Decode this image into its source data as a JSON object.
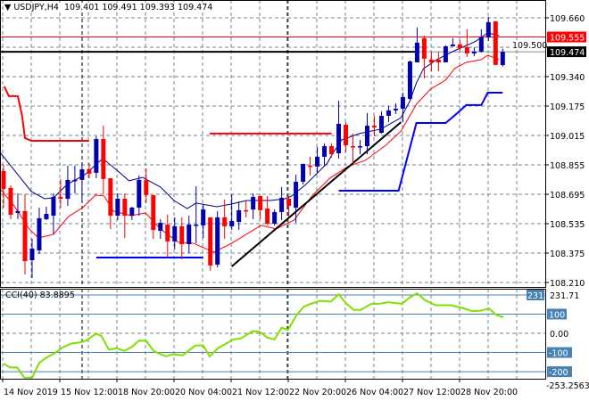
{
  "header": {
    "symbol": "USDJPY,H4",
    "open": "109.401",
    "high": "109.491",
    "low": "109.393",
    "close": "109.474"
  },
  "colors": {
    "bull": "#0000b0",
    "bear": "#ff0000",
    "ma_upper": "#000080",
    "ma_lower": "#ff0000",
    "cci": "#80e000",
    "level": "#4682b4",
    "grid": "#708090"
  },
  "price_axis": {
    "labels": [
      "109.660",
      "109.500",
      "109.340",
      "109.175",
      "109.015",
      "108.855",
      "108.695",
      "108.535",
      "108.375",
      "108.210"
    ],
    "bid_label": "109.555",
    "last_label": "109.474",
    "bid": 109.555,
    "last": 109.474
  },
  "cci_panel": {
    "title": "CCI(40) 83.8895",
    "max_label": "231.71",
    "min_label": "-253.2563",
    "levels": [
      "100",
      "0.00",
      "-100",
      "-200"
    ],
    "level_231": "231"
  },
  "time_axis": [
    "14 Nov 2019",
    "15 Nov 12:00",
    "18 Nov 20:00",
    "20 Nov 04:00",
    "21 Nov 12:00",
    "22 Nov 20:00",
    "26 Nov 04:00",
    "27 Nov 12:00",
    "28 Nov 20:00"
  ],
  "chart_data": {
    "type": "candlestick",
    "symbol": "USDJPY",
    "timeframe": "H4",
    "ylim": [
      108.21,
      109.66
    ],
    "ohlc": [
      [
        108.82,
        108.855,
        108.62,
        108.723
      ],
      [
        108.728,
        108.742,
        108.557,
        108.581
      ],
      [
        108.591,
        108.698,
        108.557,
        108.601
      ],
      [
        108.601,
        108.694,
        108.254,
        108.327
      ],
      [
        108.332,
        108.449,
        108.235,
        108.396
      ],
      [
        108.386,
        108.62,
        108.366,
        108.562
      ],
      [
        108.557,
        108.625,
        108.552,
        108.586
      ],
      [
        108.576,
        108.698,
        108.474,
        108.679
      ],
      [
        108.679,
        108.777,
        108.62,
        108.669
      ],
      [
        108.669,
        108.85,
        108.63,
        108.772
      ],
      [
        108.767,
        108.85,
        108.698,
        108.772
      ],
      [
        108.772,
        108.864,
        108.65,
        108.83
      ],
      [
        108.83,
        108.864,
        108.781,
        108.806
      ],
      [
        108.811,
        109.011,
        108.781,
        108.996
      ],
      [
        108.996,
        109.069,
        108.694,
        108.777
      ],
      [
        108.781,
        108.781,
        108.503,
        108.576
      ],
      [
        108.576,
        108.698,
        108.552,
        108.669
      ],
      [
        108.669,
        108.698,
        108.454,
        108.576
      ],
      [
        108.576,
        108.625,
        108.552,
        108.62
      ],
      [
        108.62,
        108.796,
        108.576,
        108.772
      ],
      [
        108.772,
        108.835,
        108.645,
        108.689
      ],
      [
        108.689,
        108.689,
        108.449,
        108.498
      ],
      [
        108.493,
        108.557,
        108.449,
        108.537
      ],
      [
        108.527,
        108.581,
        108.347,
        108.435
      ],
      [
        108.435,
        108.567,
        108.391,
        108.518
      ],
      [
        108.518,
        108.567,
        108.337,
        108.42
      ],
      [
        108.42,
        108.576,
        108.371,
        108.527
      ],
      [
        108.523,
        108.737,
        108.425,
        108.527
      ],
      [
        108.523,
        108.64,
        108.454,
        108.61
      ],
      [
        108.567,
        108.567,
        108.274,
        108.303
      ],
      [
        108.308,
        108.601,
        108.293,
        108.567
      ],
      [
        108.567,
        108.664,
        108.449,
        108.518
      ],
      [
        108.518,
        108.694,
        108.498,
        108.547
      ],
      [
        108.542,
        108.654,
        108.498,
        108.606
      ],
      [
        108.606,
        108.659,
        108.567,
        108.601
      ],
      [
        108.61,
        108.698,
        108.557,
        108.679
      ],
      [
        108.684,
        108.684,
        108.557,
        108.606
      ],
      [
        108.615,
        108.684,
        108.523,
        108.532
      ],
      [
        108.532,
        108.61,
        108.523,
        108.596
      ],
      [
        108.596,
        108.733,
        108.552,
        108.674
      ],
      [
        108.669,
        108.684,
        108.571,
        108.63
      ],
      [
        108.62,
        108.801,
        108.537,
        108.762
      ],
      [
        108.762,
        108.86,
        108.747,
        108.86
      ],
      [
        108.85,
        108.899,
        108.796,
        108.845
      ],
      [
        108.845,
        108.952,
        108.806,
        108.899
      ],
      [
        108.899,
        108.972,
        108.845,
        108.957
      ],
      [
        108.957,
        108.972,
        108.894,
        108.913
      ],
      [
        108.918,
        109.206,
        108.889,
        109.079
      ],
      [
        109.074,
        109.089,
        108.923,
        108.962
      ],
      [
        108.957,
        109.026,
        108.864,
        108.952
      ],
      [
        108.952,
        108.991,
        108.913,
        108.957
      ],
      [
        108.957,
        109.138,
        108.913,
        109.069
      ],
      [
        109.069,
        109.123,
        109.011,
        109.06
      ],
      [
        109.03,
        109.148,
        109.026,
        109.123
      ],
      [
        109.123,
        109.177,
        109.089,
        109.153
      ],
      [
        109.153,
        109.192,
        109.133,
        109.162
      ],
      [
        109.162,
        109.25,
        109.089,
        109.226
      ],
      [
        109.216,
        109.426,
        109.211,
        109.421
      ],
      [
        109.416,
        109.607,
        109.416,
        109.524
      ],
      [
        109.548,
        109.563,
        109.328,
        109.436
      ],
      [
        109.431,
        109.475,
        109.367,
        109.416
      ],
      [
        109.431,
        109.475,
        109.367,
        109.416
      ],
      [
        109.416,
        109.509,
        109.416,
        109.504
      ],
      [
        109.504,
        109.548,
        109.504,
        109.514
      ],
      [
        109.514,
        109.538,
        109.48,
        109.494
      ],
      [
        109.499,
        109.597,
        109.445,
        109.465
      ],
      [
        109.465,
        109.499,
        109.45,
        109.475
      ],
      [
        109.475,
        109.597,
        109.47,
        109.553
      ],
      [
        109.553,
        109.665,
        109.533,
        109.636
      ],
      [
        109.641,
        109.641,
        109.402,
        109.402
      ],
      [
        109.401,
        109.491,
        109.393,
        109.474
      ]
    ],
    "ma_upper": [
      [
        -0.5,
        108.923
      ],
      [
        3.9,
        108.708
      ],
      [
        5.75,
        108.669
      ],
      [
        7,
        108.674
      ],
      [
        8.9,
        108.747
      ],
      [
        11.4,
        108.801
      ],
      [
        13.9,
        108.889
      ],
      [
        15.75,
        108.83
      ],
      [
        17.6,
        108.767
      ],
      [
        19.5,
        108.786
      ],
      [
        22,
        108.733
      ],
      [
        23.9,
        108.659
      ],
      [
        25.75,
        108.615
      ],
      [
        27,
        108.645
      ],
      [
        29.9,
        108.625
      ],
      [
        32,
        108.64
      ],
      [
        34.1,
        108.659
      ],
      [
        37.4,
        108.659
      ],
      [
        39.5,
        108.669
      ],
      [
        40.4,
        108.684
      ],
      [
        42.4,
        108.747
      ],
      [
        45.4,
        108.864
      ],
      [
        46.1,
        108.913
      ],
      [
        47.4,
        108.991
      ],
      [
        49.9,
        109.026
      ],
      [
        51.6,
        109.04
      ],
      [
        52.9,
        109.05
      ],
      [
        55.75,
        109.113
      ],
      [
        57,
        109.206
      ],
      [
        57.9,
        109.304
      ],
      [
        58.9,
        109.382
      ],
      [
        60.75,
        109.431
      ],
      [
        63.25,
        109.48
      ],
      [
        66.1,
        109.529
      ],
      [
        67.9,
        109.577
      ],
      [
        69.5,
        109.563
      ]
    ],
    "ma_lower": [
      [
        -0.5,
        108.723
      ],
      [
        1.4,
        108.635
      ],
      [
        3.6,
        108.503
      ],
      [
        4.9,
        108.454
      ],
      [
        7,
        108.474
      ],
      [
        9.1,
        108.571
      ],
      [
        11.1,
        108.62
      ],
      [
        12.9,
        108.689
      ],
      [
        14.1,
        108.684
      ],
      [
        15.4,
        108.601
      ],
      [
        17.9,
        108.576
      ],
      [
        19.9,
        108.591
      ],
      [
        22,
        108.503
      ],
      [
        24.5,
        108.43
      ],
      [
        26.6,
        108.425
      ],
      [
        29.5,
        108.376
      ],
      [
        32,
        108.425
      ],
      [
        36.1,
        108.523
      ],
      [
        38.25,
        108.503
      ],
      [
        39.9,
        108.537
      ],
      [
        40.75,
        108.552
      ],
      [
        43.25,
        108.684
      ],
      [
        45.75,
        108.781
      ],
      [
        48.25,
        108.845
      ],
      [
        50.75,
        108.879
      ],
      [
        53.6,
        108.962
      ],
      [
        55.75,
        109.04
      ],
      [
        57.9,
        109.187
      ],
      [
        59.9,
        109.27
      ],
      [
        62,
        109.319
      ],
      [
        63.25,
        109.382
      ],
      [
        64.9,
        109.416
      ],
      [
        67,
        109.431
      ],
      [
        67.9,
        109.455
      ],
      [
        69.5,
        109.431
      ]
    ],
    "resistance_steps": [
      [
        [
          0.1,
          109.284
        ],
        [
          0.75,
          109.231
        ],
        [
          2,
          109.231
        ],
        [
          2.6,
          109.123
        ],
        [
          3,
          109.001
        ],
        [
          3.9,
          108.986
        ],
        [
          12,
          108.986
        ]
      ],
      [
        [
          28.9,
          109.026
        ],
        [
          46,
          109.026
        ]
      ]
    ],
    "support_steps": [
      [
        [
          13,
          108.347
        ],
        [
          28,
          108.347
        ]
      ],
      [
        [
          47,
          108.713
        ],
        [
          55.4,
          108.713
        ],
        [
          57.9,
          109.084
        ],
        [
          62,
          109.084
        ],
        [
          62.9,
          109.113
        ],
        [
          64.9,
          109.182
        ],
        [
          67,
          109.182
        ],
        [
          67.9,
          109.25
        ],
        [
          70,
          109.25
        ]
      ]
    ],
    "trendline": [
      [
        32,
        108.298
      ],
      [
        55.75,
        109.089
      ]
    ],
    "hline": [
      [
        -0.5,
        109.474
      ],
      [
        57.9,
        109.474
      ]
    ],
    "cci": [
      [
        0,
        -158
      ],
      [
        0.9,
        -178
      ],
      [
        1.9,
        -178
      ],
      [
        2.9,
        -231
      ],
      [
        4,
        -231
      ],
      [
        5,
        -154
      ],
      [
        6.1,
        -125
      ],
      [
        7.1,
        -105
      ],
      [
        8.25,
        -74
      ],
      [
        9.5,
        -54
      ],
      [
        10.6,
        -48
      ],
      [
        11.6,
        -38
      ],
      [
        13,
        -2
      ],
      [
        13.75,
        -15
      ],
      [
        14.75,
        -85
      ],
      [
        15.9,
        -78
      ],
      [
        16.9,
        -92
      ],
      [
        18,
        -71
      ],
      [
        19,
        -38
      ],
      [
        20,
        -40
      ],
      [
        21.1,
        -94
      ],
      [
        22.75,
        -120
      ],
      [
        23.75,
        -109
      ],
      [
        25.1,
        -115
      ],
      [
        26.9,
        -63
      ],
      [
        28,
        -63
      ],
      [
        28.9,
        -120
      ],
      [
        30.1,
        -77
      ],
      [
        32.25,
        -32
      ],
      [
        33.25,
        -28
      ],
      [
        34.9,
        11
      ],
      [
        35.9,
        8
      ],
      [
        37,
        -23
      ],
      [
        38,
        -32
      ],
      [
        39,
        29
      ],
      [
        39.9,
        18
      ],
      [
        41.1,
        95
      ],
      [
        42.1,
        138
      ],
      [
        43,
        152
      ],
      [
        44.4,
        169
      ],
      [
        45.9,
        165
      ],
      [
        47,
        203
      ],
      [
        48,
        157
      ],
      [
        49.1,
        122
      ],
      [
        50.1,
        122
      ],
      [
        51.5,
        152
      ],
      [
        52.75,
        154
      ],
      [
        53.9,
        162
      ],
      [
        54.9,
        157
      ],
      [
        55.9,
        154
      ],
      [
        57,
        188
      ],
      [
        58,
        208
      ],
      [
        59.1,
        172
      ],
      [
        60.6,
        146
      ],
      [
        62.75,
        146
      ],
      [
        64.4,
        131
      ],
      [
        65.75,
        115
      ],
      [
        67,
        118
      ],
      [
        68.1,
        129
      ],
      [
        69.1,
        95
      ],
      [
        70.1,
        84
      ]
    ],
    "cci_levels": [
      231.71,
      100,
      0,
      -100,
      -200
    ],
    "cci_range": [
      -253.2563,
      231.71
    ]
  }
}
